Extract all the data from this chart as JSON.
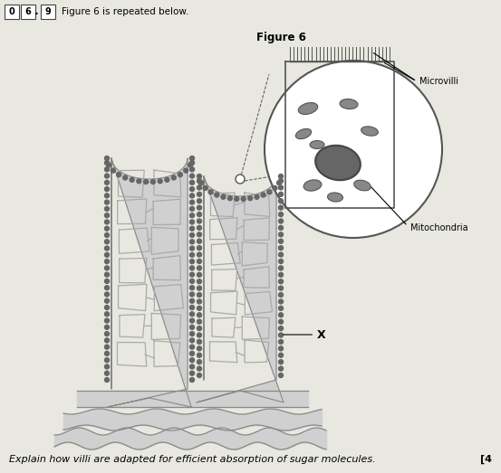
{
  "background_color": "#e8e8e0",
  "title_box_nums": [
    "0",
    "6",
    "9"
  ],
  "header_text": "Figure 6 is repeated below.",
  "figure_label": "Figure 6",
  "label_microvilli": "Microvilli",
  "label_mitochondria": "Mitochondria",
  "label_x": "X",
  "bottom_text": "Explain how villi are adapted for efficient absorption of sugar molecules.",
  "bracket_text": "[4",
  "line_color": "#888888",
  "dark_color": "#555555",
  "medium_color": "#999999",
  "light_gray": "#cccccc",
  "white": "#ffffff",
  "dot_color": "#666666",
  "villi_fill": "#d0d0d0",
  "network_color": "#aaaaaa",
  "cell_bg": "#f5f5f5"
}
